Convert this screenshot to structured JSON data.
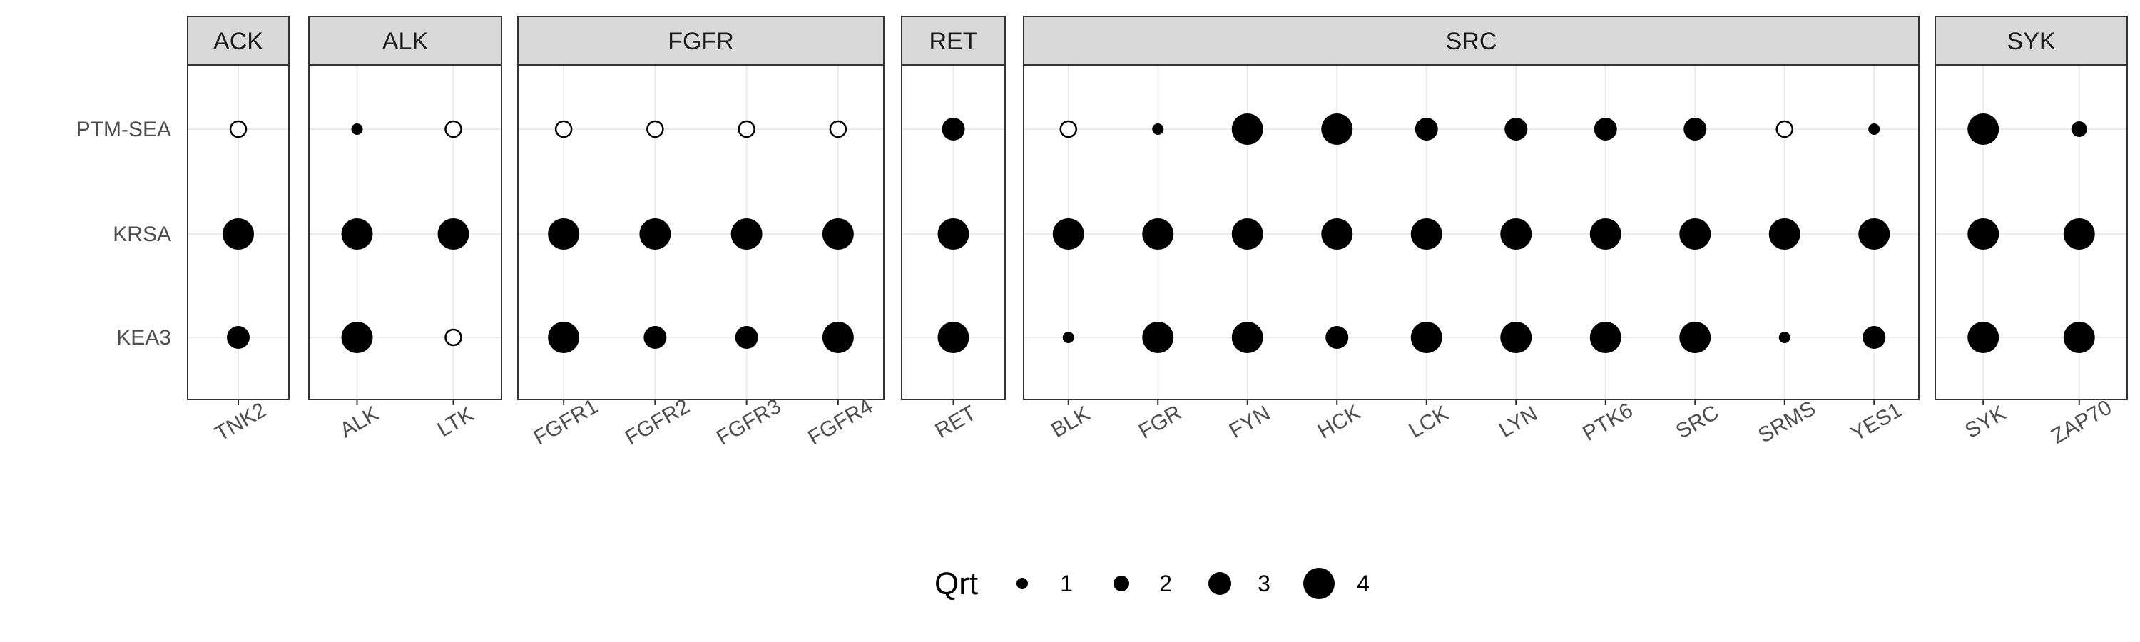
{
  "chart_data": {
    "type": "scatter",
    "y_categories": [
      "PTM-SEA",
      "KRSA",
      "KEA3"
    ],
    "facets": [
      {
        "name": "ACK",
        "x": [
          "TNK2"
        ]
      },
      {
        "name": "ALK",
        "x": [
          "ALK",
          "LTK"
        ]
      },
      {
        "name": "FGFR",
        "x": [
          "FGFR1",
          "FGFR2",
          "FGFR3",
          "FGFR4"
        ]
      },
      {
        "name": "RET",
        "x": [
          "RET"
        ]
      },
      {
        "name": "SRC",
        "x": [
          "BLK",
          "FGR",
          "FYN",
          "HCK",
          "LCK",
          "LYN",
          "PTK6",
          "SRC",
          "SRMS",
          "YES1"
        ]
      },
      {
        "name": "SYK",
        "x": [
          "SYK",
          "ZAP70"
        ]
      }
    ],
    "points": [
      {
        "facet": "ACK",
        "x": "TNK2",
        "y": "PTM-SEA",
        "qrt": null
      },
      {
        "facet": "ACK",
        "x": "TNK2",
        "y": "KRSA",
        "qrt": 4
      },
      {
        "facet": "ACK",
        "x": "TNK2",
        "y": "KEA3",
        "qrt": 3
      },
      {
        "facet": "ALK",
        "x": "ALK",
        "y": "PTM-SEA",
        "qrt": 1
      },
      {
        "facet": "ALK",
        "x": "ALK",
        "y": "KRSA",
        "qrt": 4
      },
      {
        "facet": "ALK",
        "x": "ALK",
        "y": "KEA3",
        "qrt": 4
      },
      {
        "facet": "ALK",
        "x": "LTK",
        "y": "PTM-SEA",
        "qrt": null
      },
      {
        "facet": "ALK",
        "x": "LTK",
        "y": "KRSA",
        "qrt": 4
      },
      {
        "facet": "ALK",
        "x": "LTK",
        "y": "KEA3",
        "qrt": null
      },
      {
        "facet": "FGFR",
        "x": "FGFR1",
        "y": "PTM-SEA",
        "qrt": null
      },
      {
        "facet": "FGFR",
        "x": "FGFR1",
        "y": "KRSA",
        "qrt": 4
      },
      {
        "facet": "FGFR",
        "x": "FGFR1",
        "y": "KEA3",
        "qrt": 4
      },
      {
        "facet": "FGFR",
        "x": "FGFR2",
        "y": "PTM-SEA",
        "qrt": null
      },
      {
        "facet": "FGFR",
        "x": "FGFR2",
        "y": "KRSA",
        "qrt": 4
      },
      {
        "facet": "FGFR",
        "x": "FGFR2",
        "y": "KEA3",
        "qrt": 3
      },
      {
        "facet": "FGFR",
        "x": "FGFR3",
        "y": "PTM-SEA",
        "qrt": null
      },
      {
        "facet": "FGFR",
        "x": "FGFR3",
        "y": "KRSA",
        "qrt": 4
      },
      {
        "facet": "FGFR",
        "x": "FGFR3",
        "y": "KEA3",
        "qrt": 3
      },
      {
        "facet": "FGFR",
        "x": "FGFR4",
        "y": "PTM-SEA",
        "qrt": null
      },
      {
        "facet": "FGFR",
        "x": "FGFR4",
        "y": "KRSA",
        "qrt": 4
      },
      {
        "facet": "FGFR",
        "x": "FGFR4",
        "y": "KEA3",
        "qrt": 4
      },
      {
        "facet": "RET",
        "x": "RET",
        "y": "PTM-SEA",
        "qrt": 3
      },
      {
        "facet": "RET",
        "x": "RET",
        "y": "KRSA",
        "qrt": 4
      },
      {
        "facet": "RET",
        "x": "RET",
        "y": "KEA3",
        "qrt": 4
      },
      {
        "facet": "SRC",
        "x": "BLK",
        "y": "PTM-SEA",
        "qrt": null
      },
      {
        "facet": "SRC",
        "x": "BLK",
        "y": "KRSA",
        "qrt": 4
      },
      {
        "facet": "SRC",
        "x": "BLK",
        "y": "KEA3",
        "qrt": 1
      },
      {
        "facet": "SRC",
        "x": "FGR",
        "y": "PTM-SEA",
        "qrt": 1
      },
      {
        "facet": "SRC",
        "x": "FGR",
        "y": "KRSA",
        "qrt": 4
      },
      {
        "facet": "SRC",
        "x": "FGR",
        "y": "KEA3",
        "qrt": 4
      },
      {
        "facet": "SRC",
        "x": "FYN",
        "y": "PTM-SEA",
        "qrt": 4
      },
      {
        "facet": "SRC",
        "x": "FYN",
        "y": "KRSA",
        "qrt": 4
      },
      {
        "facet": "SRC",
        "x": "FYN",
        "y": "KEA3",
        "qrt": 4
      },
      {
        "facet": "SRC",
        "x": "HCK",
        "y": "PTM-SEA",
        "qrt": 4
      },
      {
        "facet": "SRC",
        "x": "HCK",
        "y": "KRSA",
        "qrt": 4
      },
      {
        "facet": "SRC",
        "x": "HCK",
        "y": "KEA3",
        "qrt": 3
      },
      {
        "facet": "SRC",
        "x": "LCK",
        "y": "PTM-SEA",
        "qrt": 3
      },
      {
        "facet": "SRC",
        "x": "LCK",
        "y": "KRSA",
        "qrt": 4
      },
      {
        "facet": "SRC",
        "x": "LCK",
        "y": "KEA3",
        "qrt": 4
      },
      {
        "facet": "SRC",
        "x": "LYN",
        "y": "PTM-SEA",
        "qrt": 3
      },
      {
        "facet": "SRC",
        "x": "LYN",
        "y": "KRSA",
        "qrt": 4
      },
      {
        "facet": "SRC",
        "x": "LYN",
        "y": "KEA3",
        "qrt": 4
      },
      {
        "facet": "SRC",
        "x": "PTK6",
        "y": "PTM-SEA",
        "qrt": 3
      },
      {
        "facet": "SRC",
        "x": "PTK6",
        "y": "KRSA",
        "qrt": 4
      },
      {
        "facet": "SRC",
        "x": "PTK6",
        "y": "KEA3",
        "qrt": 4
      },
      {
        "facet": "SRC",
        "x": "SRC",
        "y": "PTM-SEA",
        "qrt": 3
      },
      {
        "facet": "SRC",
        "x": "SRC",
        "y": "KRSA",
        "qrt": 4
      },
      {
        "facet": "SRC",
        "x": "SRC",
        "y": "KEA3",
        "qrt": 4
      },
      {
        "facet": "SRC",
        "x": "SRMS",
        "y": "PTM-SEA",
        "qrt": null
      },
      {
        "facet": "SRC",
        "x": "SRMS",
        "y": "KRSA",
        "qrt": 4
      },
      {
        "facet": "SRC",
        "x": "SRMS",
        "y": "KEA3",
        "qrt": 1
      },
      {
        "facet": "SRC",
        "x": "YES1",
        "y": "PTM-SEA",
        "qrt": 1
      },
      {
        "facet": "SRC",
        "x": "YES1",
        "y": "KRSA",
        "qrt": 4
      },
      {
        "facet": "SRC",
        "x": "YES1",
        "y": "KEA3",
        "qrt": 3
      },
      {
        "facet": "SYK",
        "x": "SYK",
        "y": "PTM-SEA",
        "qrt": 4
      },
      {
        "facet": "SYK",
        "x": "SYK",
        "y": "KRSA",
        "qrt": 4
      },
      {
        "facet": "SYK",
        "x": "SYK",
        "y": "KEA3",
        "qrt": 4
      },
      {
        "facet": "SYK",
        "x": "ZAP70",
        "y": "PTM-SEA",
        "qrt": 2
      },
      {
        "facet": "SYK",
        "x": "ZAP70",
        "y": "KRSA",
        "qrt": 4
      },
      {
        "facet": "SYK",
        "x": "ZAP70",
        "y": "KEA3",
        "qrt": 4
      }
    ],
    "legend": {
      "title": "Qrt",
      "position": "bottom",
      "entries": [
        {
          "label": "1",
          "qrt": 1
        },
        {
          "label": "2",
          "qrt": 2
        },
        {
          "label": "3",
          "qrt": 3
        },
        {
          "label": "4",
          "qrt": 4
        }
      ]
    },
    "grid": true,
    "colors": {
      "point": "#000000",
      "grid": "#ebebeb",
      "strip": "#d9d9d9",
      "border": "#333333"
    }
  }
}
